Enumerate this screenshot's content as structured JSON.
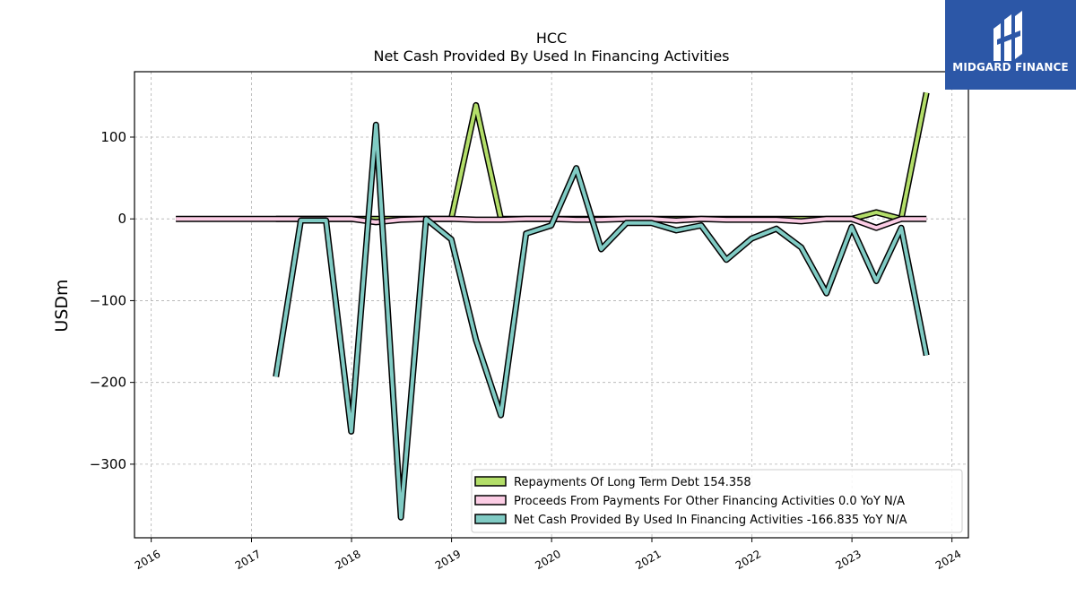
{
  "chart_data": {
    "type": "line",
    "title": "HCC",
    "subtitle": "Net Cash Provided By Used In Financing Activities",
    "ylabel": "USDm",
    "xlabel": "",
    "xlim": [
      "2015-11-01",
      "2024-03-01"
    ],
    "ylim": [
      -390,
      180
    ],
    "grid": true,
    "legend_position": "lower-right",
    "x_ticks": [
      "2016",
      "2017",
      "2018",
      "2019",
      "2020",
      "2021",
      "2022",
      "2023",
      "2024"
    ],
    "y_ticks": [
      {
        "value": 100,
        "label": "100"
      },
      {
        "value": 0,
        "label": "0"
      },
      {
        "value": -100,
        "label": "−100"
      },
      {
        "value": -200,
        "label": "−200"
      },
      {
        "value": -300,
        "label": "−300"
      }
    ],
    "series": [
      {
        "name": "Repayments Of Long Term Debt",
        "legend": "Repayments Of Long Term Debt  154.358",
        "color": "#b3de69",
        "points": [
          [
            "2017-03-31",
            0
          ],
          [
            "2017-06-30",
            0
          ],
          [
            "2017-09-30",
            0
          ],
          [
            "2017-12-31",
            0
          ],
          [
            "2018-03-31",
            0
          ],
          [
            "2018-06-30",
            0
          ],
          [
            "2018-09-30",
            0
          ],
          [
            "2018-12-31",
            0
          ],
          [
            "2019-03-31",
            139
          ],
          [
            "2019-06-30",
            0
          ],
          [
            "2019-09-30",
            0
          ],
          [
            "2019-12-31",
            0
          ],
          [
            "2020-03-31",
            0
          ],
          [
            "2020-06-30",
            0
          ],
          [
            "2020-09-30",
            0
          ],
          [
            "2020-12-31",
            0
          ],
          [
            "2021-03-31",
            0
          ],
          [
            "2021-06-30",
            0
          ],
          [
            "2021-09-30",
            0
          ],
          [
            "2021-12-31",
            0
          ],
          [
            "2022-03-31",
            0
          ],
          [
            "2022-06-30",
            0
          ],
          [
            "2022-09-30",
            0
          ],
          [
            "2022-12-31",
            0
          ],
          [
            "2023-03-31",
            8
          ],
          [
            "2023-06-30",
            0
          ],
          [
            "2023-09-30",
            154.358
          ]
        ]
      },
      {
        "name": "Proceeds From Payments For Other Financing Activities",
        "legend": "Proceeds From Payments For Other Financing Activities  0.0 YoY N/A",
        "color": "#fccde5",
        "points": [
          [
            "2016-03-31",
            0
          ],
          [
            "2016-06-30",
            0
          ],
          [
            "2016-09-30",
            0
          ],
          [
            "2016-12-31",
            0
          ],
          [
            "2017-03-31",
            0
          ],
          [
            "2017-06-30",
            0
          ],
          [
            "2017-09-30",
            0
          ],
          [
            "2017-12-31",
            0
          ],
          [
            "2018-03-31",
            -4
          ],
          [
            "2018-06-30",
            -1
          ],
          [
            "2018-09-30",
            0
          ],
          [
            "2018-12-31",
            0
          ],
          [
            "2019-03-31",
            -1
          ],
          [
            "2019-06-30",
            -1
          ],
          [
            "2019-09-30",
            0
          ],
          [
            "2019-12-31",
            0
          ],
          [
            "2020-03-31",
            -1
          ],
          [
            "2020-06-30",
            -1
          ],
          [
            "2020-09-30",
            0
          ],
          [
            "2020-12-31",
            0
          ],
          [
            "2021-03-31",
            -2
          ],
          [
            "2021-06-30",
            0
          ],
          [
            "2021-09-30",
            -1
          ],
          [
            "2021-12-31",
            -1
          ],
          [
            "2022-03-31",
            -1
          ],
          [
            "2022-06-30",
            -3
          ],
          [
            "2022-09-30",
            0
          ],
          [
            "2022-12-31",
            0
          ],
          [
            "2023-03-31",
            -11
          ],
          [
            "2023-06-30",
            0
          ],
          [
            "2023-09-30",
            0
          ]
        ]
      },
      {
        "name": "Net Cash Provided By Used In Financing Activities",
        "legend": "Net Cash Provided By Used In Financing Activities  -166.835 YoY N/A",
        "color": "#80cbc4",
        "points": [
          [
            "2017-03-31",
            -193
          ],
          [
            "2017-06-30",
            -2
          ],
          [
            "2017-09-30",
            -2
          ],
          [
            "2017-12-31",
            -260
          ],
          [
            "2018-03-31",
            115
          ],
          [
            "2018-06-30",
            -365
          ],
          [
            "2018-09-30",
            0
          ],
          [
            "2018-12-31",
            -25
          ],
          [
            "2019-03-31",
            -148
          ],
          [
            "2019-06-30",
            -240
          ],
          [
            "2019-09-30",
            -18
          ],
          [
            "2019-12-31",
            -8
          ],
          [
            "2020-03-31",
            62
          ],
          [
            "2020-06-30",
            -37
          ],
          [
            "2020-09-30",
            -5
          ],
          [
            "2020-12-31",
            -5
          ],
          [
            "2021-03-31",
            -14
          ],
          [
            "2021-06-30",
            -8
          ],
          [
            "2021-09-30",
            -50
          ],
          [
            "2021-12-31",
            -24
          ],
          [
            "2022-03-31",
            -12
          ],
          [
            "2022-06-30",
            -35
          ],
          [
            "2022-09-30",
            -91
          ],
          [
            "2022-12-31",
            -10
          ],
          [
            "2023-03-31",
            -76
          ],
          [
            "2023-06-30",
            -11
          ],
          [
            "2023-09-30",
            -166.835
          ]
        ]
      }
    ]
  },
  "logo": {
    "text": "MIDGARD FINANCE",
    "background": "#2c57a7"
  }
}
